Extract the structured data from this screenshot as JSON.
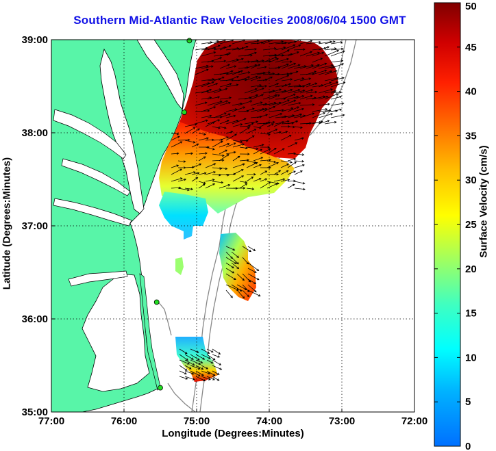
{
  "title": "Southern Mid-Atlantic Raw Velocities 2008/06/04 1500 GMT",
  "xlabel": "Longitude (Degrees:Minutes)",
  "ylabel": "Latitude (Degrees:Minutes)",
  "colorbar": {
    "label": "Surface Velocity (cm/s)",
    "ticks": [
      "0",
      "5",
      "10",
      "15",
      "20",
      "25",
      "30",
      "35",
      "40",
      "45",
      "50"
    ],
    "range": [
      0,
      50
    ]
  },
  "x_ticks": [
    "77:00",
    "76:00",
    "75:00",
    "74:00",
    "73:00",
    "72:00"
  ],
  "y_ticks": [
    "35:00",
    "36:00",
    "37:00",
    "38:00",
    "39:00"
  ],
  "map": {
    "lon_range": [
      -77,
      -72
    ],
    "lat_range": [
      35,
      39
    ],
    "land_color": "#58f5a8",
    "water_color": "#ffffff",
    "bathymetry_color": "#888888",
    "station_marker_color": "#22dd22",
    "stations": [
      {
        "lon": -75.1,
        "lat": 38.99
      },
      {
        "lon": -75.17,
        "lat": 38.22
      },
      {
        "lon": -75.55,
        "lat": 36.18
      },
      {
        "lon": -75.5,
        "lat": 35.26
      }
    ]
  }
}
